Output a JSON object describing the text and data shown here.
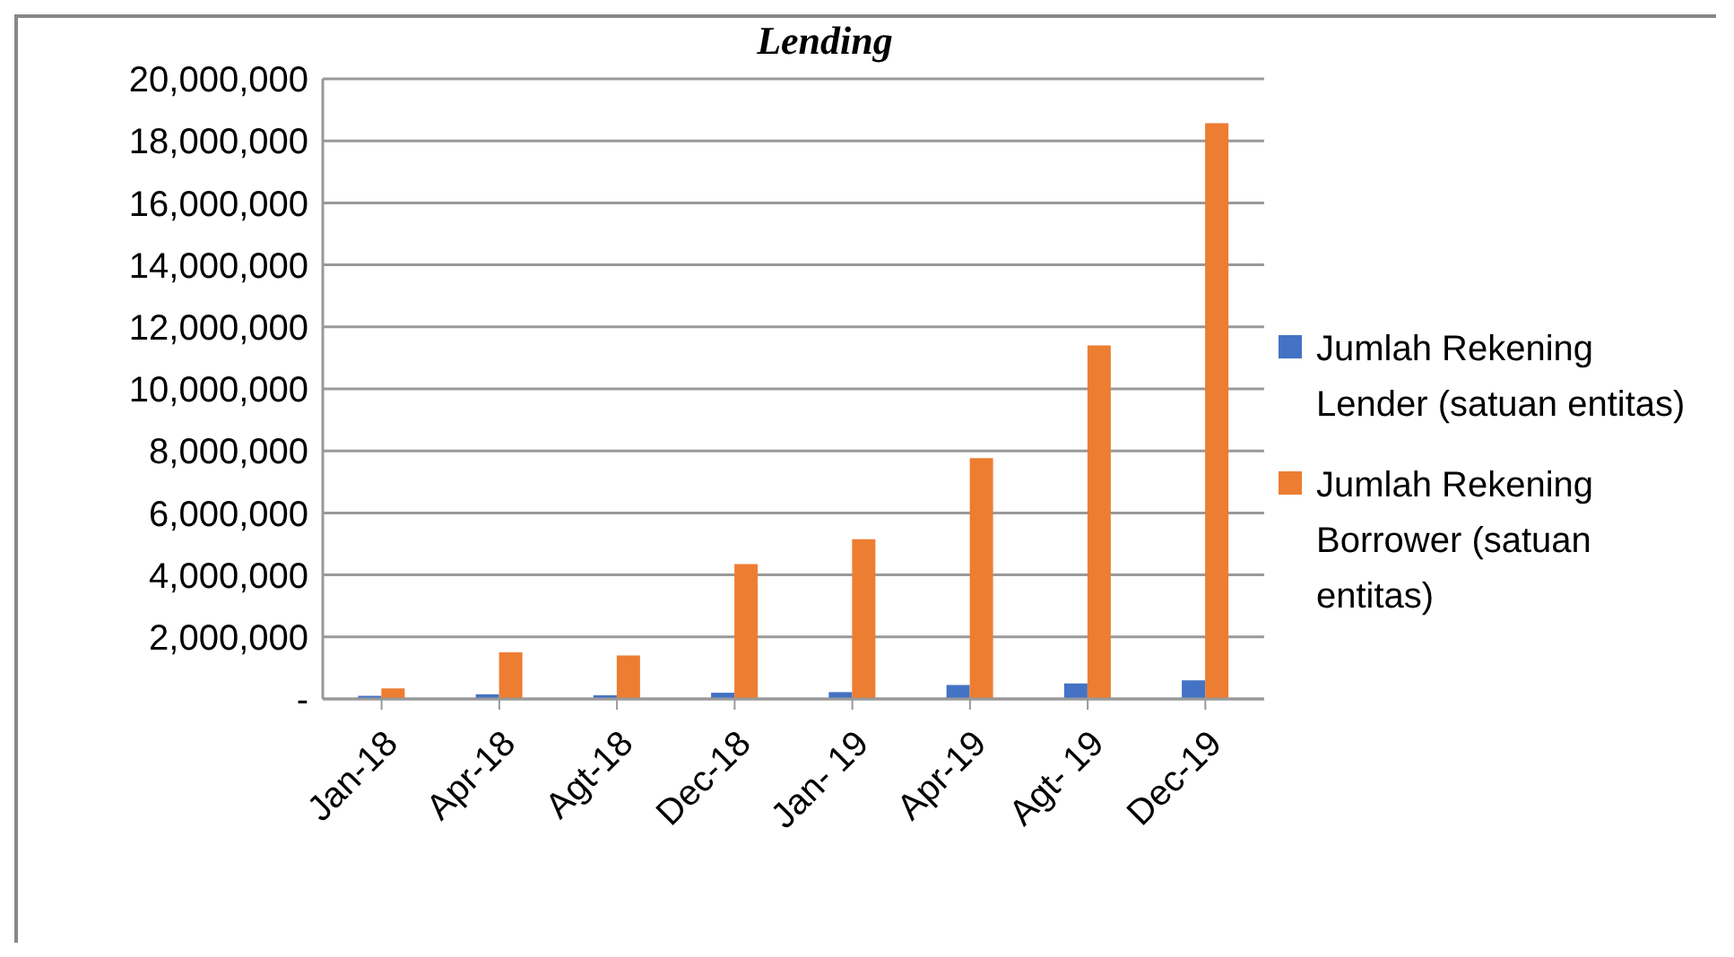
{
  "chart_data": {
    "type": "bar",
    "title": "Lending",
    "categories": [
      "Jan-18",
      "Apr-18",
      "Agt-18",
      "Dec-18",
      "Jan- 19",
      "Apr-19",
      "Agt- 19",
      "Dec-19"
    ],
    "series": [
      {
        "name": "Jumlah Rekening Lender (satuan entitas)",
        "color": "#4472c4",
        "values": [
          100000,
          150000,
          120000,
          200000,
          220000,
          450000,
          500000,
          600000
        ]
      },
      {
        "name": "Jumlah Rekening Borrower (satuan entitas)",
        "color": "#ed7d31",
        "values": [
          340000,
          1500000,
          1400000,
          4350000,
          5150000,
          7770000,
          11400000,
          18570000
        ]
      }
    ],
    "ylim": [
      0,
      20000000
    ],
    "yticks": [
      {
        "value": 0,
        "label": "-"
      },
      {
        "value": 2000000,
        "label": "2,000,000"
      },
      {
        "value": 4000000,
        "label": "4,000,000"
      },
      {
        "value": 6000000,
        "label": "6,000,000"
      },
      {
        "value": 8000000,
        "label": "8,000,000"
      },
      {
        "value": 10000000,
        "label": "10,000,000"
      },
      {
        "value": 12000000,
        "label": "12,000,000"
      },
      {
        "value": 14000000,
        "label": "14,000,000"
      },
      {
        "value": 16000000,
        "label": "16,000,000"
      },
      {
        "value": 18000000,
        "label": "18,000,000"
      },
      {
        "value": 20000000,
        "label": "20,000,000"
      }
    ],
    "grid": "y",
    "legend": "right"
  }
}
